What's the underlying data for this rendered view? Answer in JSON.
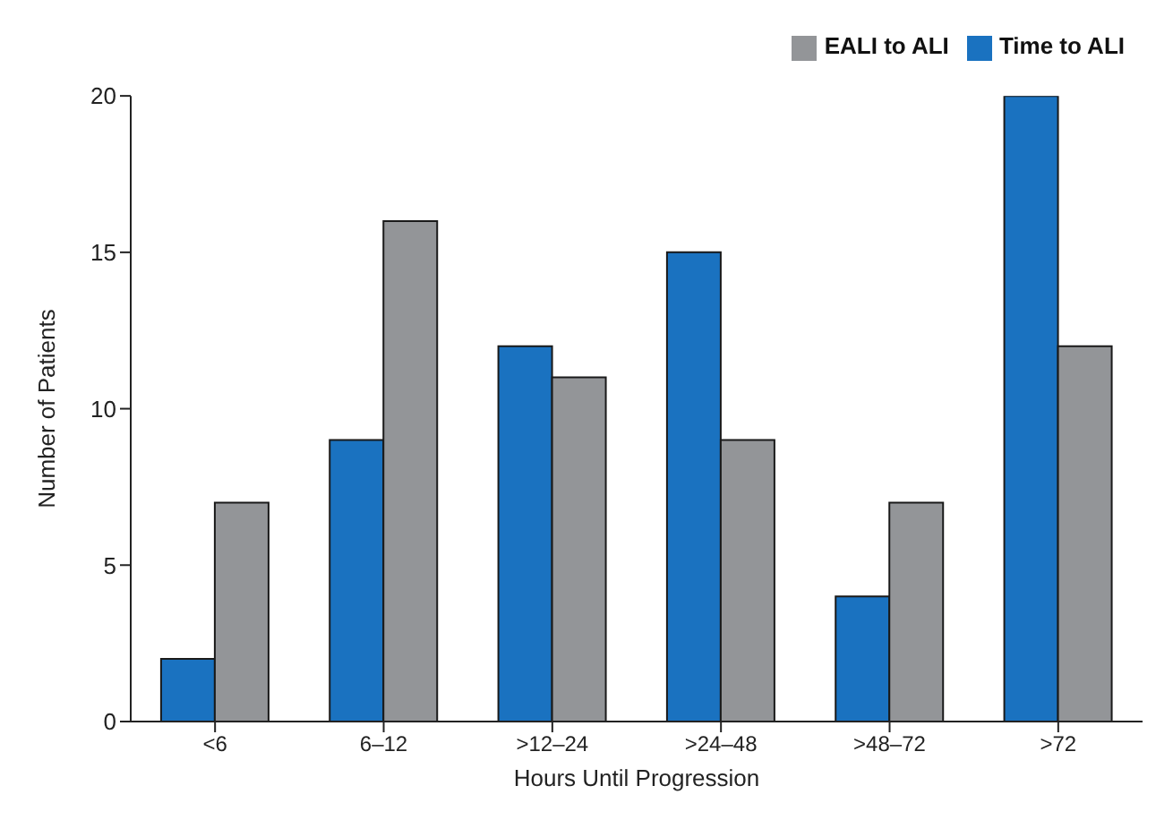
{
  "chart_data": {
    "type": "bar",
    "xlabel": "Hours Until Progression",
    "ylabel": "Number of Patients",
    "categories": [
      "<6",
      "6–12",
      ">12–24",
      ">24–48",
      ">48–72",
      ">72"
    ],
    "series": [
      {
        "name": "Time to ALI",
        "color": "#1a72c0",
        "values": [
          2,
          9,
          12,
          15,
          4,
          20
        ]
      },
      {
        "name": "EALI to ALI",
        "color": "#939598",
        "values": [
          7,
          16,
          11,
          9,
          7,
          12
        ]
      }
    ],
    "ylim": [
      0,
      20
    ],
    "yticks": [
      0,
      5,
      10,
      15,
      20
    ],
    "grid": false,
    "legend": "top right"
  }
}
